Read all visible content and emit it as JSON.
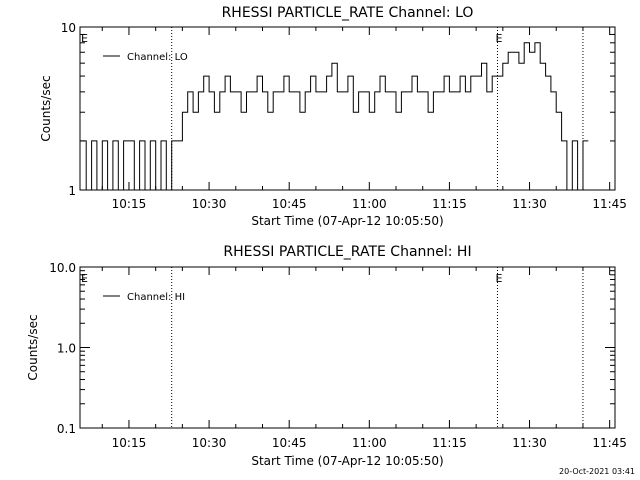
{
  "timestamp": "20-Oct-2021 03:41",
  "chart_data": [
    {
      "type": "line",
      "title": "RHESSI PARTICLE_RATE Channel: LO",
      "xlabel": "Start Time (07-Apr-12 10:05:50)",
      "ylabel": "Counts/sec",
      "yscale": "log",
      "ylim": [
        1,
        10
      ],
      "y_ticklabels": [
        "1",
        "10"
      ],
      "x_ticklabels": [
        "10:15",
        "10:30",
        "10:45",
        "11:00",
        "11:15",
        "11:30",
        "11:45"
      ],
      "event_lines": [
        "10:23",
        "11:24",
        "11:40"
      ],
      "event_labels": [
        {
          "time": "10:06",
          "text": "E"
        },
        {
          "time": "11:24",
          "text": "E"
        }
      ],
      "legend": {
        "position": "top-left",
        "entries": [
          "Channel: LO"
        ]
      },
      "series": [
        {
          "name": "Channel: LO",
          "x": [
            "10:06",
            "10:07",
            "10:08",
            "10:09",
            "10:10",
            "10:11",
            "10:12",
            "10:13",
            "10:14",
            "10:15",
            "10:16",
            "10:17",
            "10:18",
            "10:19",
            "10:20",
            "10:21",
            "10:22",
            "10:23",
            "10:24",
            "10:25",
            "10:26",
            "10:27",
            "10:28",
            "10:29",
            "10:30",
            "10:31",
            "10:32",
            "10:33",
            "10:34",
            "10:35",
            "10:36",
            "10:37",
            "10:38",
            "10:39",
            "10:40",
            "10:41",
            "10:42",
            "10:43",
            "10:44",
            "10:45",
            "10:46",
            "10:47",
            "10:48",
            "10:49",
            "10:50",
            "10:51",
            "10:52",
            "10:53",
            "10:54",
            "10:55",
            "10:56",
            "10:57",
            "10:58",
            "10:59",
            "11:00",
            "11:01",
            "11:02",
            "11:03",
            "11:04",
            "11:05",
            "11:06",
            "11:07",
            "11:08",
            "11:09",
            "11:10",
            "11:11",
            "11:12",
            "11:13",
            "11:14",
            "11:15",
            "11:16",
            "11:17",
            "11:18",
            "11:19",
            "11:20",
            "11:21",
            "11:22",
            "11:23",
            "11:24",
            "11:25",
            "11:26",
            "11:27",
            "11:28",
            "11:29",
            "11:30",
            "11:31",
            "11:32",
            "11:33",
            "11:34",
            "11:35",
            "11:36",
            "11:37",
            "11:38",
            "11:39",
            "11:40"
          ],
          "values": [
            2,
            1,
            2,
            1,
            2,
            1,
            2,
            1,
            2,
            2,
            1,
            2,
            1,
            2,
            1,
            2,
            1,
            2,
            2,
            3,
            4,
            3,
            4,
            5,
            4,
            3,
            4,
            5,
            4,
            4,
            3,
            4,
            4,
            5,
            4,
            3,
            4,
            4,
            5,
            4,
            4,
            3,
            4,
            5,
            4,
            4,
            5,
            6,
            4,
            4,
            5,
            3,
            4,
            4,
            3,
            4,
            5,
            4,
            4,
            3,
            4,
            4,
            5,
            4,
            4,
            3,
            4,
            4,
            5,
            4,
            4,
            5,
            4,
            5,
            5,
            6,
            4,
            5,
            5,
            6,
            7,
            7,
            6,
            8,
            7,
            8,
            6,
            5,
            4,
            3,
            2,
            1,
            2,
            1,
            2
          ]
        }
      ]
    },
    {
      "type": "line",
      "title": "RHESSI PARTICLE_RATE Channel: HI",
      "xlabel": "Start Time (07-Apr-12 10:05:50)",
      "ylabel": "Counts/sec",
      "yscale": "log",
      "ylim": [
        0.1,
        10
      ],
      "y_ticklabels": [
        "0.1",
        "1.0",
        "10.0"
      ],
      "x_ticklabels": [
        "10:15",
        "10:30",
        "10:45",
        "11:00",
        "11:15",
        "11:30",
        "11:45"
      ],
      "event_lines": [
        "10:23",
        "11:24",
        "11:40"
      ],
      "event_labels": [
        {
          "time": "10:06",
          "text": "E"
        },
        {
          "time": "11:24",
          "text": "E"
        }
      ],
      "legend": {
        "position": "top-left",
        "entries": [
          "Channel: HI"
        ]
      },
      "series": [
        {
          "name": "Channel: HI",
          "x": [],
          "values": []
        }
      ]
    }
  ]
}
